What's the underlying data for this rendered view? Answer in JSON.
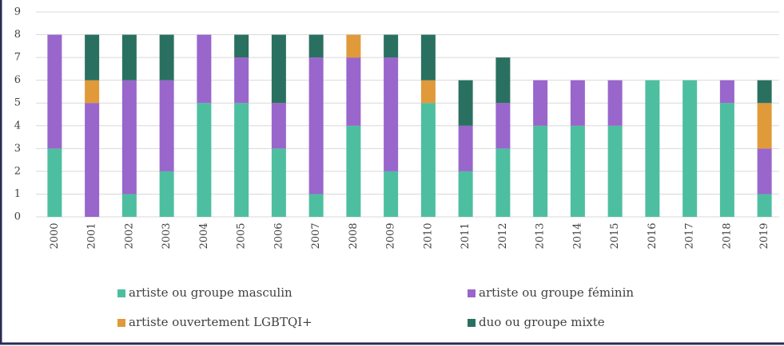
{
  "chart_data": {
    "type": "stacked_bar",
    "categories": [
      "2000",
      "2001",
      "2002",
      "2003",
      "2004",
      "2005",
      "2006",
      "2007",
      "2008",
      "2009",
      "2010",
      "2011",
      "2012",
      "2013",
      "2014",
      "2015",
      "2016",
      "2017",
      "2018",
      "2019"
    ],
    "series": [
      {
        "name": "artiste ou groupe masculin",
        "color": "#4dbfa0",
        "values": [
          3,
          0,
          1,
          2,
          5,
          5,
          3,
          1,
          4,
          2,
          5,
          2,
          3,
          4,
          4,
          4,
          6,
          6,
          5,
          1
        ]
      },
      {
        "name": "artiste ou groupe féminin",
        "color": "#9966cc",
        "values": [
          5,
          5,
          5,
          4,
          3,
          2,
          2,
          6,
          3,
          5,
          0,
          2,
          2,
          2,
          2,
          2,
          0,
          0,
          1,
          2
        ]
      },
      {
        "name": "artiste ouvertement LGBTQI+",
        "color": "#e09a3a",
        "values": [
          0,
          1,
          0,
          0,
          0,
          0,
          0,
          0,
          1,
          0,
          1,
          0,
          0,
          0,
          0,
          0,
          0,
          0,
          0,
          2
        ]
      },
      {
        "name": "duo ou groupe mixte",
        "color": "#2a7060",
        "values": [
          0,
          2,
          2,
          2,
          0,
          1,
          3,
          1,
          0,
          1,
          2,
          2,
          2,
          0,
          0,
          0,
          0,
          0,
          0,
          1
        ]
      }
    ],
    "ylim": [
      0,
      9
    ],
    "yticks": [
      0,
      1,
      2,
      3,
      4,
      5,
      6,
      7,
      8,
      9
    ],
    "grid": true
  }
}
